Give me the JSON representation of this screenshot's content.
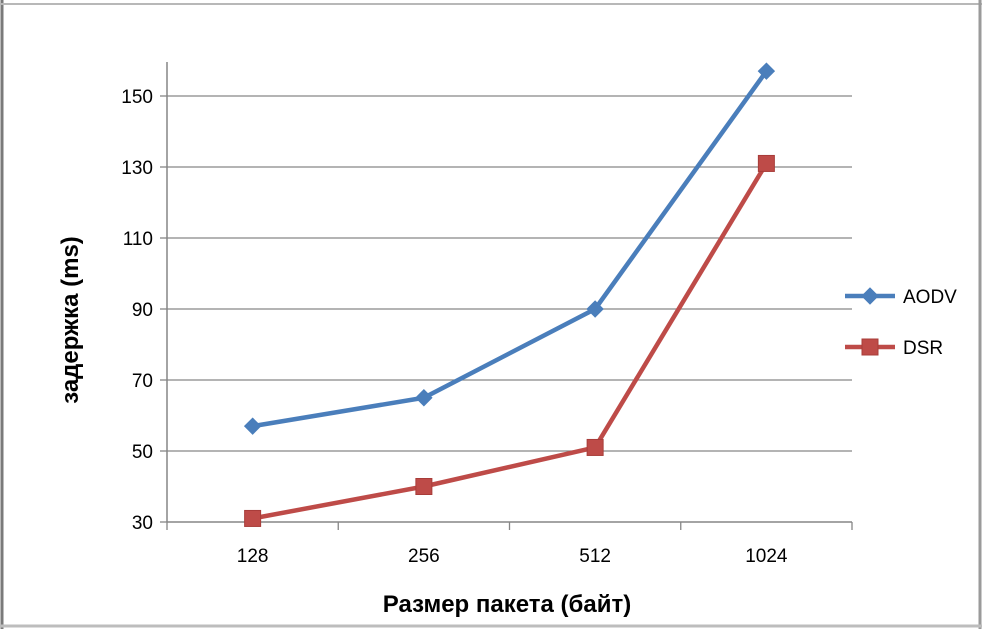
{
  "chart_data": {
    "type": "line",
    "categories": [
      "128",
      "256",
      "512",
      "1024"
    ],
    "series": [
      {
        "name": "AODV",
        "values": [
          57,
          65,
          90,
          157
        ],
        "color": "#4a7ebb",
        "marker": "diamond"
      },
      {
        "name": "DSR",
        "values": [
          31,
          40,
          51,
          131
        ],
        "color": "#be4b48",
        "marker": "square"
      }
    ],
    "yticks": [
      30,
      50,
      70,
      90,
      110,
      130,
      150
    ],
    "ylim": [
      30,
      160
    ],
    "xlabel": "Размер пакета (байт)",
    "ylabel": "задержка (ms)",
    "grid": "horizontal",
    "legend": "right"
  }
}
